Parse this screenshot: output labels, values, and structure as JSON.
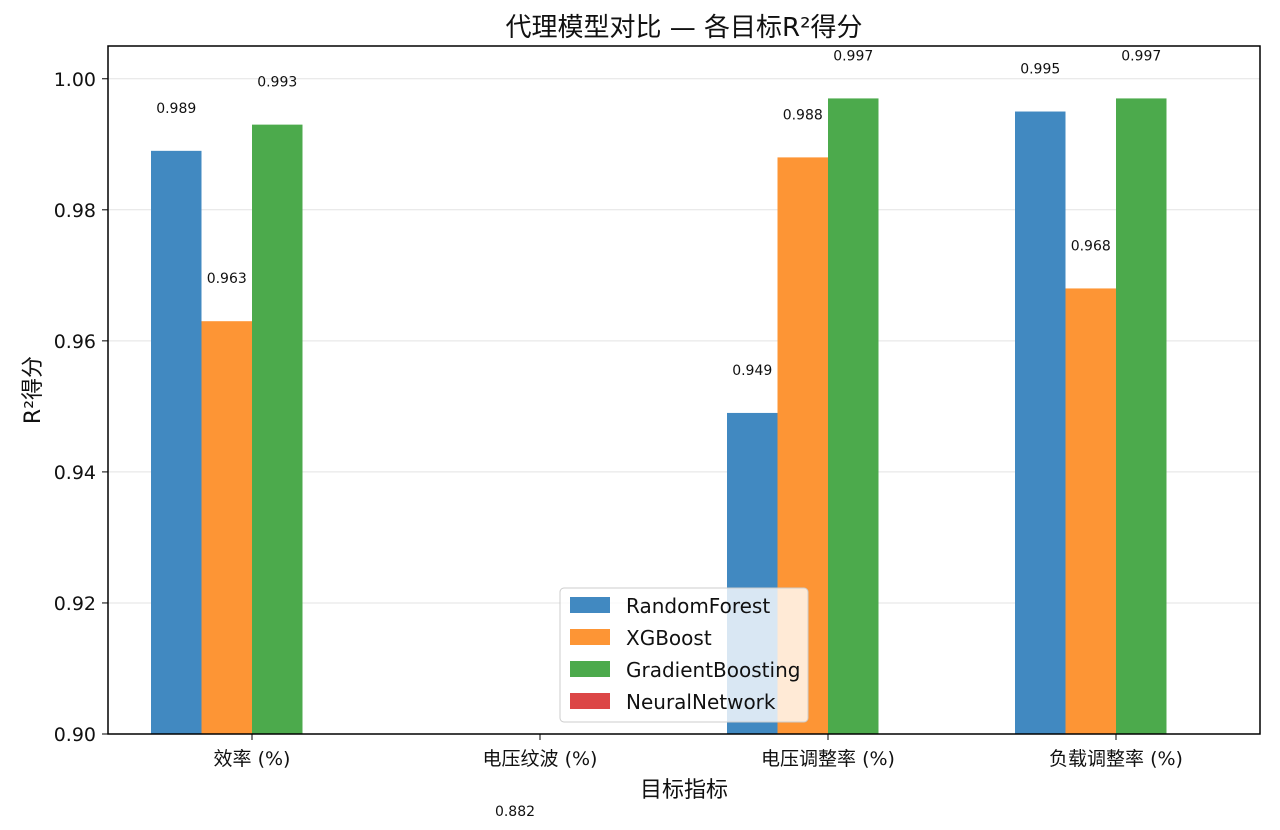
{
  "chart_data": {
    "type": "bar",
    "title": "代理模型对比 — 各目标R²得分",
    "xlabel": "目标指标",
    "ylabel": "R²得分",
    "ylim": [
      0.9,
      1.005
    ],
    "yticks": [
      "0.90",
      "0.92",
      "0.94",
      "0.96",
      "0.98",
      "1.00"
    ],
    "grid": "horizontal",
    "legend_position": "lower-center",
    "categories": [
      "效率 (%)",
      "电压纹波 (%)",
      "电压调整率 (%)",
      "负载调整率 (%)"
    ],
    "series": [
      {
        "name": "RandomForest",
        "color": "#4189c1",
        "values": [
          0.989,
          null,
          0.949,
          0.995
        ]
      },
      {
        "name": "XGBoost",
        "color": "#fd9535",
        "values": [
          0.963,
          null,
          0.988,
          0.968
        ]
      },
      {
        "name": "GradientBoosting",
        "color": "#4caa4c",
        "values": [
          0.993,
          null,
          0.997,
          0.997
        ]
      },
      {
        "name": "NeuralNetwork",
        "color": "#dc4646",
        "values": [
          null,
          null,
          null,
          null
        ]
      }
    ],
    "annotations": [
      {
        "text": "0.882",
        "category": "电压纹波 (%)"
      }
    ]
  }
}
